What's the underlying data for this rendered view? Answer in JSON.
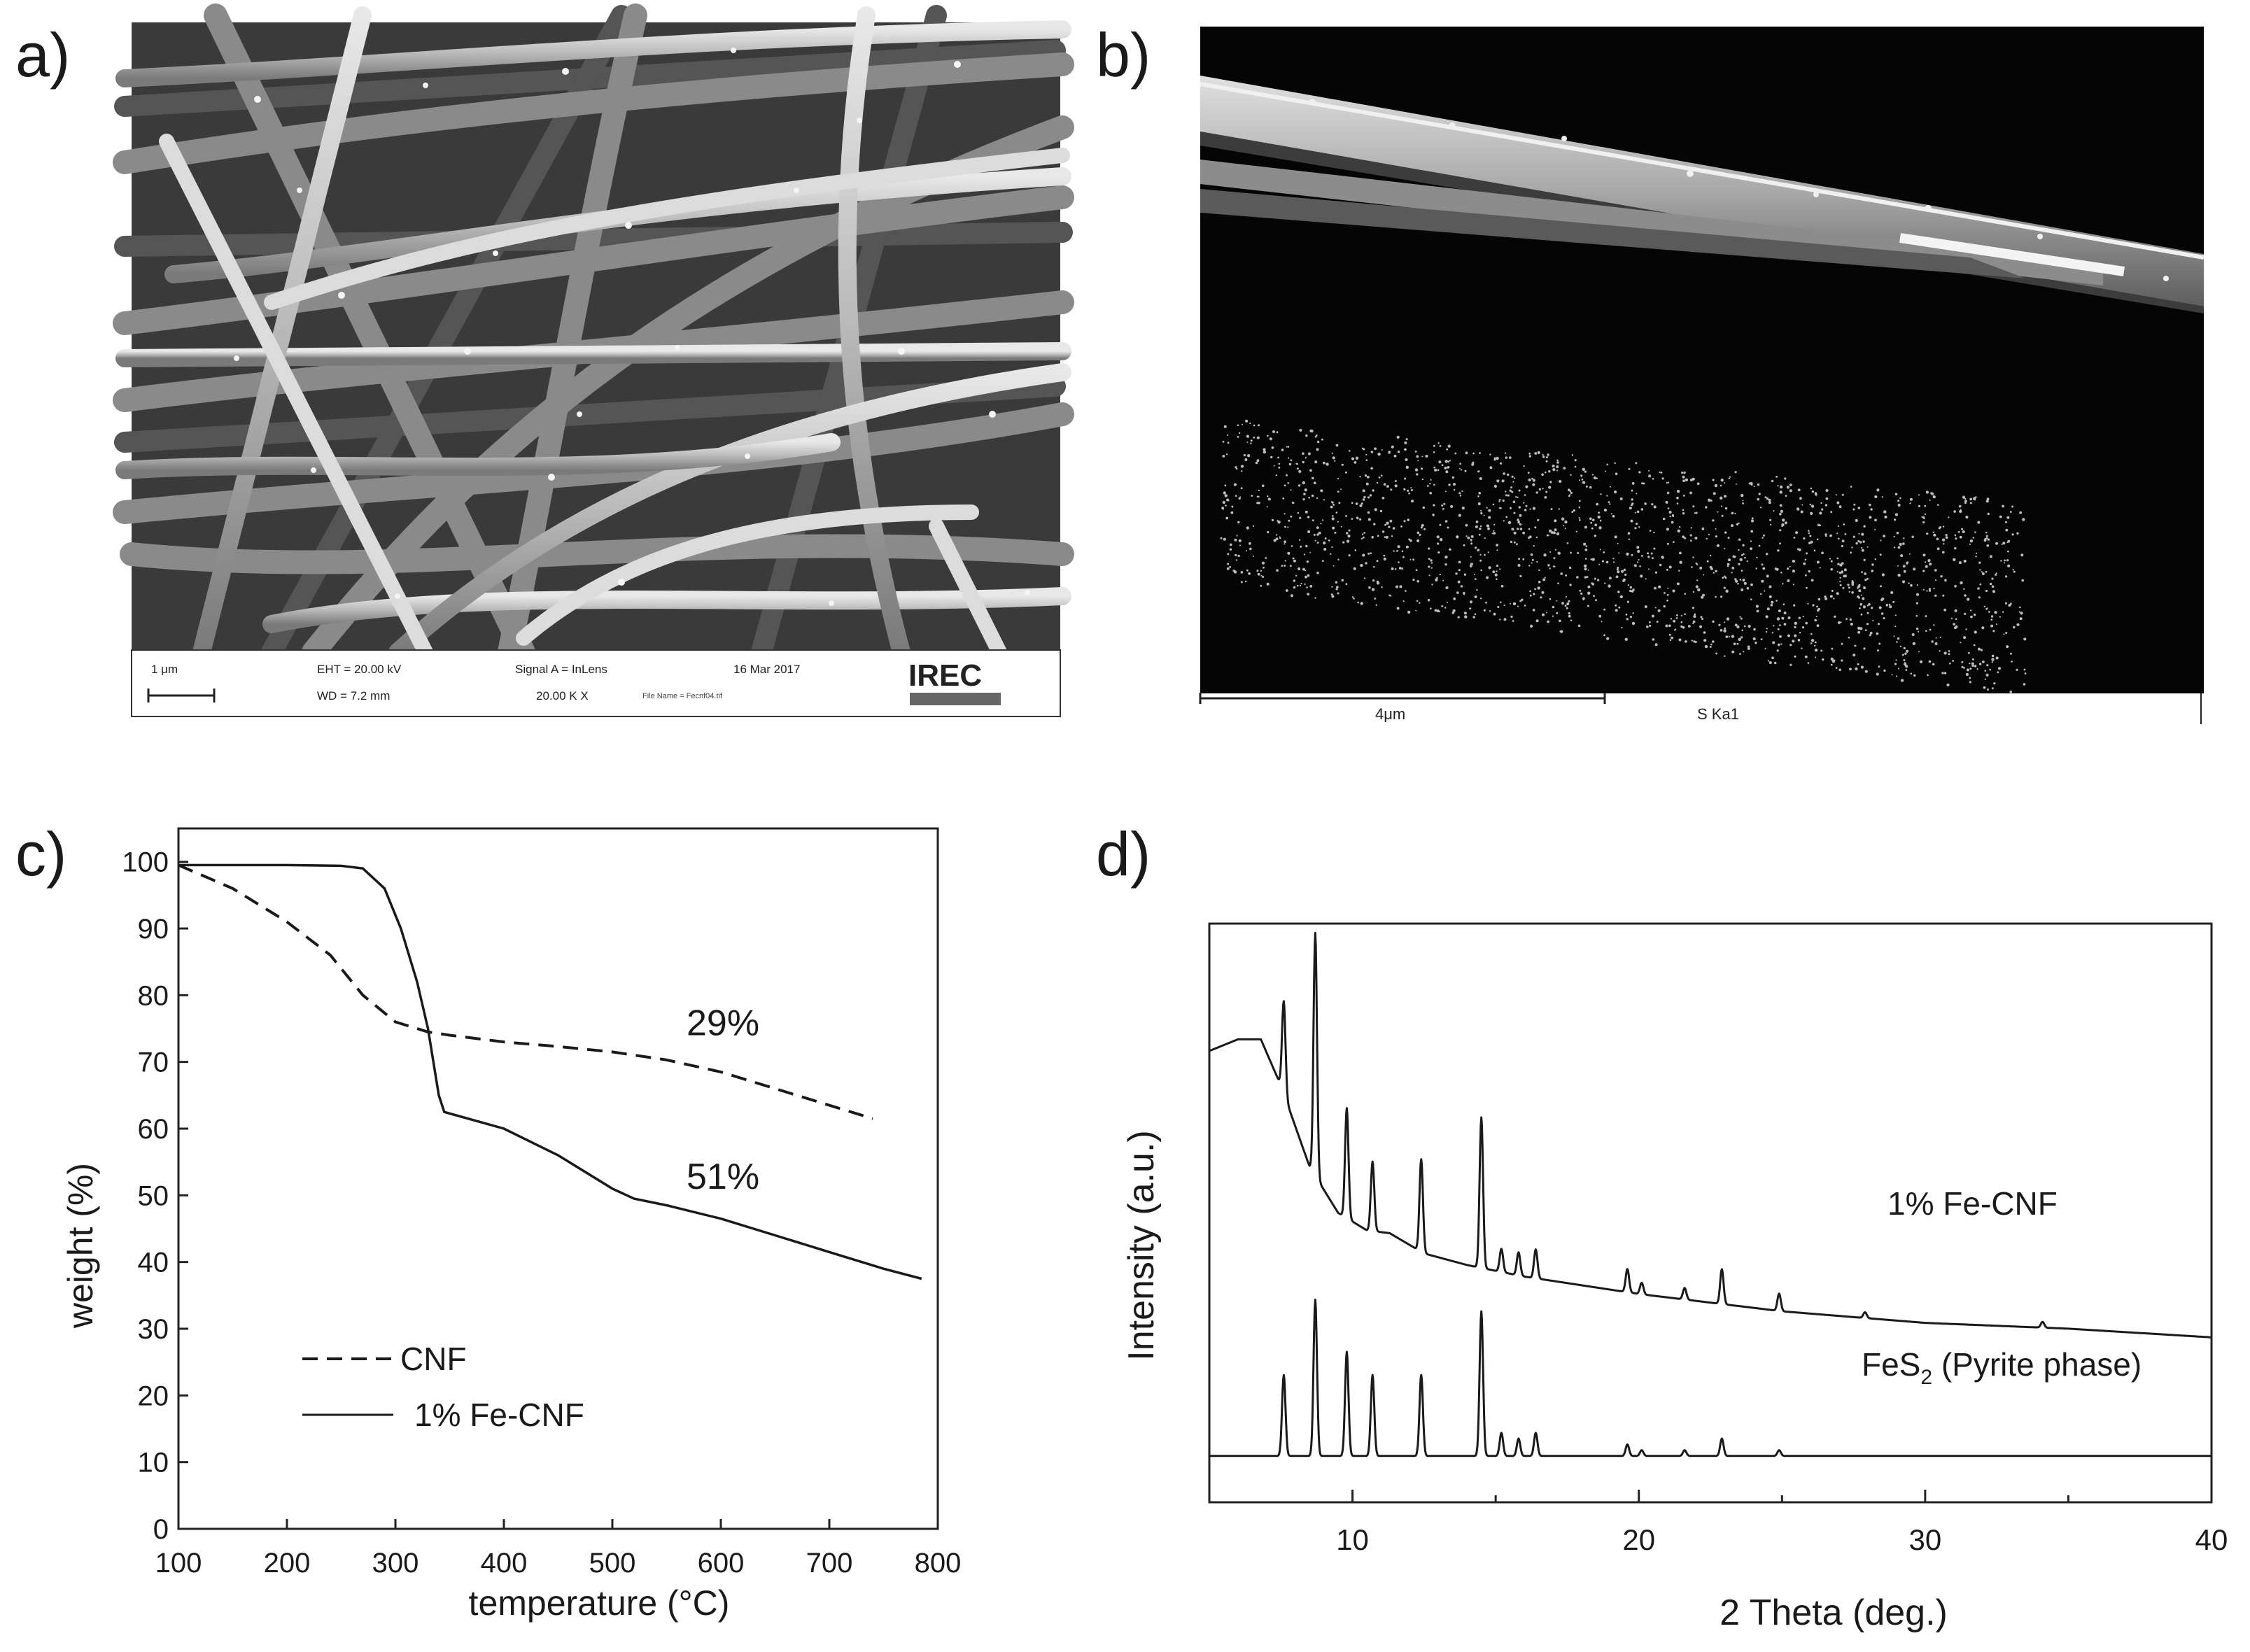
{
  "panels": {
    "a": "a)",
    "b": "b)",
    "c": "c)",
    "d": "d)"
  },
  "sem_a": {
    "scale_bar": "1 μm",
    "eht": "EHT = 20.00 kV",
    "wd": "WD =  7.2 mm",
    "signal": "Signal A = InLens",
    "mag": "20.00 K X",
    "date": "16 Mar 2017",
    "file": "File Name = Fecnf04.tif",
    "logo": "IREC"
  },
  "sem_b": {
    "scale_bar": "4μm",
    "map_label": "S Ka1"
  },
  "chart_data": [
    {
      "type": "line",
      "xlabel": "temperature (°C)",
      "ylabel": "weight (%)",
      "xlim": [
        100,
        800
      ],
      "ylim": [
        0,
        105
      ],
      "xticks": [
        100,
        200,
        300,
        400,
        500,
        600,
        700,
        800
      ],
      "yticks": [
        0,
        10,
        20,
        30,
        40,
        50,
        60,
        70,
        80,
        90,
        100
      ],
      "legend_position": "bottom-left",
      "series": [
        {
          "name": "CNF",
          "style": "dashed",
          "x": [
            100,
            150,
            200,
            240,
            270,
            300,
            330,
            350,
            400,
            450,
            500,
            550,
            600,
            650,
            700,
            740
          ],
          "y": [
            99.5,
            96,
            91,
            86,
            80,
            76,
            74.5,
            74,
            73,
            72.3,
            71.5,
            70.3,
            68.5,
            66,
            63.5,
            61.5
          ]
        },
        {
          "name": "1% Fe-CNF",
          "style": "solid",
          "x": [
            100,
            150,
            200,
            250,
            270,
            290,
            305,
            320,
            330,
            340,
            345,
            400,
            450,
            500,
            520,
            550,
            600,
            650,
            700,
            750,
            785
          ],
          "y": [
            99.5,
            99.5,
            99.5,
            99.4,
            99,
            96,
            90,
            82,
            75,
            65,
            62.5,
            60,
            56,
            51,
            49.5,
            48.5,
            46.5,
            44,
            41.5,
            39,
            37.5
          ]
        }
      ],
      "annotations": [
        {
          "text": "29%",
          "x": 620,
          "y": 74
        },
        {
          "text": "51%",
          "x": 620,
          "y": 51
        }
      ]
    },
    {
      "type": "line",
      "xlabel": "2 Theta (deg.)",
      "ylabel": "Intensity (a.u.)",
      "xlim": [
        5,
        40
      ],
      "ylim": [
        0,
        1
      ],
      "xticks": [
        10,
        20,
        30,
        40
      ],
      "series": [
        {
          "name": "1% Fe-CNF",
          "baseline": [
            [
              5,
              0.78
            ],
            [
              6,
              0.8
            ],
            [
              6.8,
              0.8
            ],
            [
              7.5,
              0.72
            ],
            [
              8.5,
              0.58
            ],
            [
              9.5,
              0.5
            ],
            [
              10.5,
              0.47
            ],
            [
              11.3,
              0.465
            ],
            [
              12.5,
              0.43
            ],
            [
              14,
              0.41
            ],
            [
              16,
              0.39
            ],
            [
              20,
              0.36
            ],
            [
              25,
              0.33
            ],
            [
              30,
              0.31
            ],
            [
              35,
              0.3
            ],
            [
              40,
              0.285
            ]
          ],
          "peaks": [
            {
              "x": 7.6,
              "h": 0.16
            },
            {
              "x": 8.7,
              "h": 0.42
            },
            {
              "x": 9.8,
              "h": 0.19
            },
            {
              "x": 10.7,
              "h": 0.12
            },
            {
              "x": 12.4,
              "h": 0.16
            },
            {
              "x": 14.5,
              "h": 0.26
            },
            {
              "x": 15.2,
              "h": 0.04
            },
            {
              "x": 15.8,
              "h": 0.04
            },
            {
              "x": 16.4,
              "h": 0.05
            },
            {
              "x": 19.6,
              "h": 0.04
            },
            {
              "x": 20.1,
              "h": 0.02
            },
            {
              "x": 21.6,
              "h": 0.02
            },
            {
              "x": 22.9,
              "h": 0.06
            },
            {
              "x": 24.9,
              "h": 0.03
            },
            {
              "x": 27.9,
              "h": 0.01
            },
            {
              "x": 34.1,
              "h": 0.01
            }
          ]
        },
        {
          "name": "FeS2 (Pyrite phase)",
          "baseline": [
            [
              5,
              0.08
            ],
            [
              40,
              0.08
            ]
          ],
          "peaks": [
            {
              "x": 7.6,
              "h": 0.14
            },
            {
              "x": 8.7,
              "h": 0.27
            },
            {
              "x": 9.8,
              "h": 0.18
            },
            {
              "x": 10.7,
              "h": 0.14
            },
            {
              "x": 12.4,
              "h": 0.14
            },
            {
              "x": 14.5,
              "h": 0.25
            },
            {
              "x": 15.2,
              "h": 0.04
            },
            {
              "x": 15.8,
              "h": 0.03
            },
            {
              "x": 16.4,
              "h": 0.04
            },
            {
              "x": 19.6,
              "h": 0.02
            },
            {
              "x": 20.1,
              "h": 0.01
            },
            {
              "x": 21.6,
              "h": 0.01
            },
            {
              "x": 22.9,
              "h": 0.03
            },
            {
              "x": 24.9,
              "h": 0.01
            }
          ]
        }
      ]
    }
  ]
}
